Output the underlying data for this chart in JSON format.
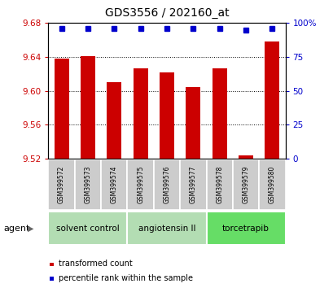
{
  "title": "GDS3556 / 202160_at",
  "samples": [
    "GSM399572",
    "GSM399573",
    "GSM399574",
    "GSM399575",
    "GSM399576",
    "GSM399577",
    "GSM399578",
    "GSM399579",
    "GSM399580"
  ],
  "transformed_counts": [
    9.638,
    9.641,
    9.61,
    9.626,
    9.622,
    9.604,
    9.626,
    9.524,
    9.658
  ],
  "percentile_ranks": [
    96,
    96,
    96,
    96,
    96,
    96,
    96,
    95,
    96
  ],
  "ylim_left": [
    9.52,
    9.68
  ],
  "ylim_right": [
    0,
    100
  ],
  "yticks_left": [
    9.52,
    9.56,
    9.6,
    9.64,
    9.68
  ],
  "yticks_right": [
    0,
    25,
    50,
    75,
    100
  ],
  "bar_color": "#cc0000",
  "dot_color": "#0000cc",
  "agent_groups": [
    {
      "label": "solvent control",
      "start": 0,
      "end": 3,
      "color": "#b3ddb3"
    },
    {
      "label": "angiotensin II",
      "start": 3,
      "end": 6,
      "color": "#b3ddb3"
    },
    {
      "label": "torcetrapib",
      "start": 6,
      "end": 9,
      "color": "#66dd66"
    }
  ],
  "agent_label": "agent",
  "legend_bar_label": "transformed count",
  "legend_dot_label": "percentile rank within the sample",
  "tick_label_color_left": "#cc0000",
  "tick_label_color_right": "#0000cc",
  "sample_box_color": "#cccccc",
  "plot_bg": "#ffffff"
}
